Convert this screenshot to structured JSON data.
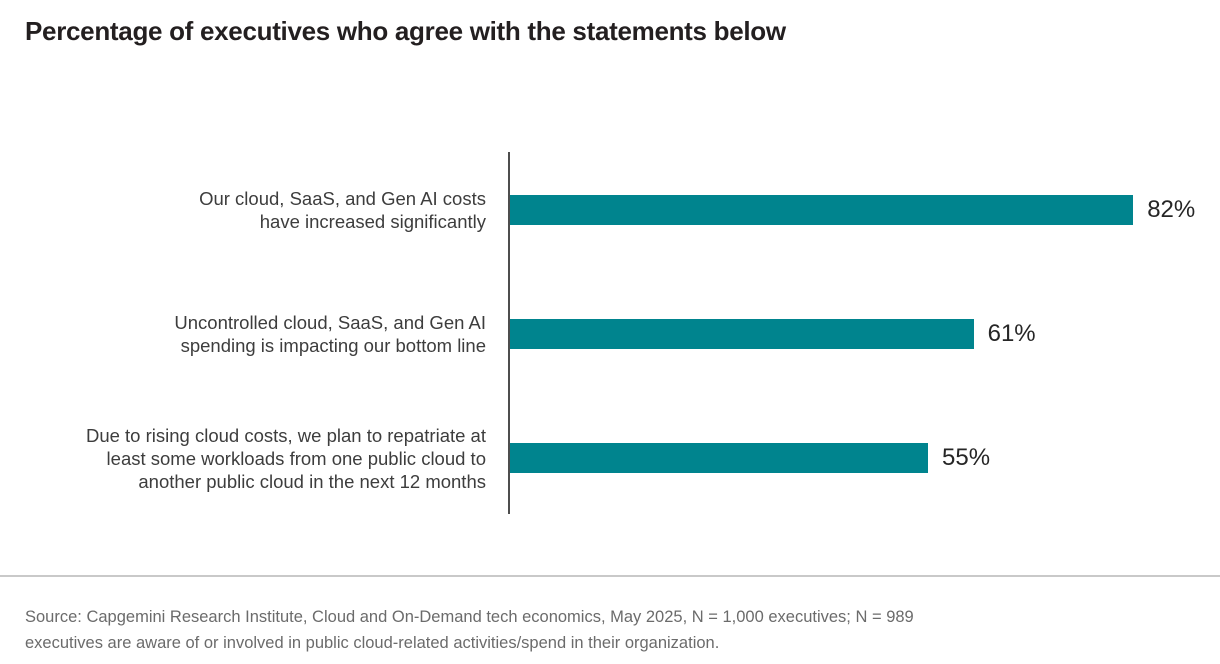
{
  "title": "Percentage of executives who agree with the statements below",
  "colors": {
    "bar": "#00848E",
    "axis": "#4d4d4d",
    "divider": "#c9c9c9",
    "title_text": "#231f20",
    "label_text": "#3d3d3d",
    "value_text": "#262626",
    "source_text": "#6b6b6b"
  },
  "chart_data": {
    "type": "bar",
    "orientation": "horizontal",
    "unit": "%",
    "xlim": [
      0,
      100
    ],
    "title": "Percentage of executives who agree with the statements below",
    "xlabel": "",
    "ylabel": "",
    "grid": false,
    "legend": false,
    "categories": [
      "Our cloud, SaaS, and Gen AI costs have increased significantly",
      "Uncontrolled cloud, SaaS, and Gen AI spending is impacting our bottom line",
      "Due to rising cloud costs, we plan to repatriate at least some workloads from one public cloud to another public cloud in the next 12 months"
    ],
    "values": [
      82,
      61,
      55
    ],
    "rows": [
      {
        "label_lines": [
          "Our cloud, SaaS, and Gen AI costs",
          "have increased significantly"
        ],
        "value": 82,
        "value_label": "82%"
      },
      {
        "label_lines": [
          "Uncontrolled cloud, SaaS, and Gen AI",
          "spending is impacting our bottom line"
        ],
        "value": 61,
        "value_label": "61%"
      },
      {
        "label_lines": [
          "Due to rising cloud costs, we plan to repatriate at",
          "least some workloads from one public cloud to",
          "another public cloud in the next 12 months"
        ],
        "value": 55,
        "value_label": "55%"
      }
    ]
  },
  "source": {
    "lines": [
      "Source: Capgemini Research Institute, Cloud and On-Demand tech economics, May 2025, N = 1,000 executives; N = 989",
      "executives are aware of or involved in public cloud-related activities/spend in their organization."
    ]
  }
}
